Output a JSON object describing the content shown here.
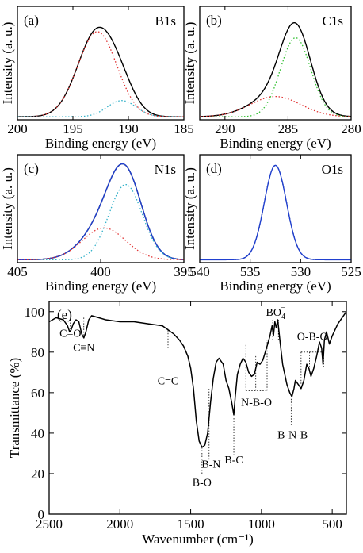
{
  "figure": {
    "panels": [
      {
        "tag": "(a)",
        "element": "B1s",
        "ylabel": "Intensity (a. u.)",
        "xlabel": "Binding energy (eV)"
      },
      {
        "tag": "(b)",
        "element": "C1s",
        "ylabel": "Intensity (a. u.)",
        "xlabel": "Binding energy (eV)"
      },
      {
        "tag": "(c)",
        "element": "N1s",
        "ylabel": "Intensity (a. u.)",
        "xlabel": "Binding energy (eV)"
      },
      {
        "tag": "(d)",
        "element": "O1s",
        "ylabel": "Intensity (a. u.)",
        "xlabel": "Binding energy (eV)"
      },
      {
        "tag": "(e)",
        "ylabel": "Transmittance (%)",
        "xlabel": "Wavenumber (cm⁻¹)"
      }
    ]
  },
  "chart_data": [
    {
      "type": "line",
      "title": "B1s",
      "tag": "(a)",
      "xlabel": "Binding energy (eV)",
      "ylabel": "Intensity (a. u.)",
      "xlim": [
        200,
        185
      ],
      "ylim": [
        0,
        1.12
      ],
      "reversed_x": true,
      "xticks": [
        200,
        195,
        190,
        185
      ],
      "series": [
        {
          "style": "solid",
          "color": "#000000",
          "kind": "measured",
          "peaks": [
            {
              "center": 192.8,
              "height": 0.84,
              "width": 1.75
            },
            {
              "center": 190.6,
              "height": 0.16,
              "width": 1.3
            }
          ],
          "baseline": 0.03
        },
        {
          "style": "dotted",
          "color": "#e03030",
          "kind": "fit",
          "peaks": [
            {
              "center": 192.8,
              "height": 0.84,
              "width": 1.75
            }
          ],
          "baseline": 0.03
        },
        {
          "style": "dotted",
          "color": "#30b0c8",
          "kind": "fit",
          "peaks": [
            {
              "center": 190.6,
              "height": 0.16,
              "width": 1.3
            }
          ],
          "baseline": 0.03
        }
      ]
    },
    {
      "type": "line",
      "title": "C1s",
      "tag": "(b)",
      "xlabel": "Binding energy (eV)",
      "ylabel": "Intensity (a. u.)",
      "xlim": [
        292,
        280
      ],
      "ylim": [
        0,
        1.12
      ],
      "reversed_x": true,
      "xticks": [
        290,
        285,
        280
      ],
      "series": [
        {
          "style": "solid",
          "color": "#000000",
          "kind": "measured",
          "peaks": [
            {
              "center": 284.4,
              "height": 0.78,
              "width": 1.2
            },
            {
              "center": 286.0,
              "height": 0.2,
              "width": 2.0
            }
          ],
          "baseline": 0.03
        },
        {
          "style": "dotted",
          "color": "#30c030",
          "kind": "fit",
          "peaks": [
            {
              "center": 284.4,
              "height": 0.78,
              "width": 1.2
            }
          ],
          "baseline": 0.03
        },
        {
          "style": "dotted",
          "color": "#e03030",
          "kind": "fit",
          "peaks": [
            {
              "center": 286.0,
              "height": 0.2,
              "width": 2.0
            }
          ],
          "baseline": 0.03
        }
      ]
    },
    {
      "type": "line",
      "title": "N1s",
      "tag": "(c)",
      "xlabel": "Binding energy (eV)",
      "ylabel": "Intensity (a. u.)",
      "xlim": [
        405,
        395
      ],
      "ylim": [
        0,
        1.12
      ],
      "reversed_x": true,
      "xticks": [
        405,
        400,
        395
      ],
      "series": [
        {
          "style": "solid",
          "color": "#000000",
          "kind": "measured",
          "peaks": [
            {
              "center": 398.5,
              "height": 0.78,
              "width": 1.0
            },
            {
              "center": 399.8,
              "height": 0.33,
              "width": 1.3
            }
          ],
          "baseline": 0.03
        },
        {
          "style": "solid",
          "color": "#2040d0",
          "kind": "fit-envelope",
          "peaks": [
            {
              "center": 398.5,
              "height": 0.78,
              "width": 1.0
            },
            {
              "center": 399.8,
              "height": 0.33,
              "width": 1.3
            }
          ],
          "baseline": 0.03
        },
        {
          "style": "dotted",
          "color": "#30b0c8",
          "kind": "fit",
          "peaks": [
            {
              "center": 398.5,
              "height": 0.78,
              "width": 1.0
            }
          ],
          "baseline": 0.03
        },
        {
          "style": "dotted",
          "color": "#e03030",
          "kind": "fit",
          "peaks": [
            {
              "center": 399.8,
              "height": 0.33,
              "width": 1.3
            }
          ],
          "baseline": 0.03
        }
      ]
    },
    {
      "type": "line",
      "title": "O1s",
      "tag": "(d)",
      "xlabel": "Binding energy (eV)",
      "ylabel": "Intensity (a. u.)",
      "xlim": [
        540,
        525
      ],
      "ylim": [
        0,
        1.12
      ],
      "reversed_x": true,
      "xticks": [
        540,
        535,
        530,
        525
      ],
      "series": [
        {
          "style": "dotted",
          "color": "#000000",
          "kind": "measured",
          "peaks": [
            {
              "center": 532.5,
              "height": 0.98,
              "width": 1.1
            }
          ],
          "baseline": 0.03
        },
        {
          "style": "solid",
          "color": "#2040d0",
          "kind": "fit",
          "peaks": [
            {
              "center": 532.5,
              "height": 0.98,
              "width": 1.1
            }
          ],
          "baseline": 0.03
        }
      ]
    },
    {
      "type": "line",
      "title": "",
      "tag": "(e)",
      "xlabel": "Wavenumber (cm⁻¹)",
      "ylabel": "Transmittance (%)",
      "xlim": [
        2500,
        400
      ],
      "ylim": [
        0,
        105
      ],
      "reversed_x": true,
      "xticks": [
        2500,
        2000,
        1500,
        1000,
        500
      ],
      "yticks": [
        0,
        20,
        40,
        60,
        80,
        100
      ],
      "series": [
        {
          "style": "solid",
          "color": "#000000",
          "name": "",
          "x": [
            2500,
            2450,
            2400,
            2370,
            2355,
            2345,
            2330,
            2310,
            2290,
            2270,
            2255,
            2240,
            2220,
            2200,
            2150,
            2100,
            2000,
            1900,
            1800,
            1700,
            1660,
            1620,
            1580,
            1550,
            1520,
            1500,
            1480,
            1460,
            1440,
            1420,
            1400,
            1380,
            1360,
            1340,
            1320,
            1300,
            1270,
            1250,
            1230,
            1210,
            1195,
            1185,
            1170,
            1150,
            1130,
            1110,
            1090,
            1070,
            1050,
            1030,
            1010,
            990,
            960,
            940,
            925,
            915,
            905,
            895,
            885,
            870,
            850,
            820,
            800,
            785,
            770,
            760,
            740,
            720,
            700,
            680,
            665,
            650,
            630,
            610,
            590,
            575,
            565,
            555,
            540,
            520,
            500,
            460,
            420,
            400
          ],
          "y": [
            95,
            97,
            96,
            93,
            90,
            91,
            94,
            96,
            95,
            89,
            87,
            90,
            96,
            98,
            97,
            96,
            95,
            95,
            94,
            93,
            91,
            89,
            86,
            83,
            78,
            72,
            62,
            46,
            36,
            33,
            34,
            40,
            55,
            67,
            75,
            77,
            74,
            66,
            62,
            55,
            49,
            58,
            69,
            74,
            77,
            75,
            70,
            68,
            69,
            75,
            74,
            76,
            83,
            88,
            93,
            88,
            95,
            92,
            96,
            86,
            74,
            64,
            60,
            58,
            62,
            66,
            64,
            62,
            66,
            74,
            72,
            68,
            72,
            78,
            85,
            82,
            74,
            86,
            90,
            84,
            88,
            94,
            98,
            100
          ]
        },
        {
          "style": "dotted",
          "color": "#000000",
          "kind": "annotation-guides"
        }
      ],
      "annotations": [
        {
          "label": "C=O",
          "x": 2350
        },
        {
          "label": "C≡N",
          "x": 2255
        },
        {
          "label": "C=C",
          "x": 1660
        },
        {
          "label": "B-O",
          "x": 1420
        },
        {
          "label": "B-N",
          "x": 1370
        },
        {
          "label": "B-C",
          "x": 1195
        },
        {
          "label": "N-B-O",
          "x": 1050
        },
        {
          "label": "BO",
          "sub": "4",
          "sup": "−",
          "x": 900
        },
        {
          "label": "B-N-B",
          "x": 760
        },
        {
          "label": "O-B-O",
          "x": 620
        }
      ]
    }
  ]
}
